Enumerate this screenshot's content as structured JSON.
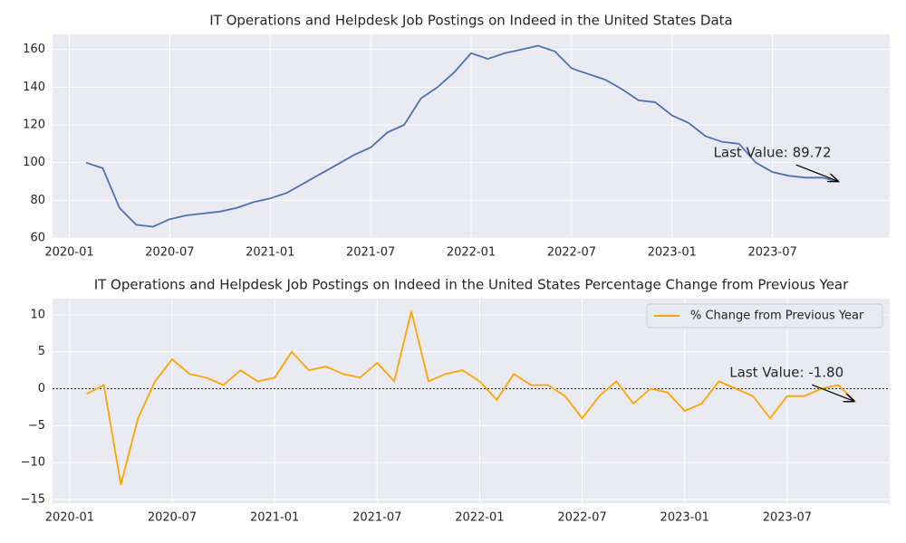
{
  "chart_data": [
    {
      "type": "line",
      "title": "IT Operations and Helpdesk Job Postings on Indeed in the United States Data",
      "x": [
        "2020-02",
        "2020-03",
        "2020-04",
        "2020-05",
        "2020-06",
        "2020-07",
        "2020-08",
        "2020-09",
        "2020-10",
        "2020-11",
        "2020-12",
        "2021-01",
        "2021-02",
        "2021-03",
        "2021-04",
        "2021-05",
        "2021-06",
        "2021-07",
        "2021-08",
        "2021-09",
        "2021-10",
        "2021-11",
        "2021-12",
        "2022-01",
        "2022-02",
        "2022-03",
        "2022-04",
        "2022-05",
        "2022-06",
        "2022-07",
        "2022-08",
        "2022-09",
        "2022-10",
        "2022-11",
        "2022-12",
        "2023-01",
        "2023-02",
        "2023-03",
        "2023-04",
        "2023-05",
        "2023-06",
        "2023-07",
        "2023-08",
        "2023-09",
        "2023-10",
        "2023-11"
      ],
      "values": [
        100,
        97,
        76,
        67,
        66,
        70,
        72,
        73,
        74,
        76,
        79,
        81,
        84,
        89,
        94,
        99,
        104,
        108,
        116,
        120,
        134,
        140,
        148,
        158,
        155,
        158,
        160,
        162,
        159,
        150,
        147,
        144,
        139,
        133,
        132,
        125,
        121,
        114,
        111,
        110,
        100,
        95,
        93,
        92,
        92,
        89.72
      ],
      "color": "#4c72b0",
      "xlim": [
        "2019-12",
        "2024-02"
      ],
      "xticks": [
        "2020-01",
        "2020-07",
        "2021-01",
        "2021-07",
        "2022-01",
        "2022-07",
        "2023-01",
        "2023-07"
      ],
      "ylim": [
        60,
        168
      ],
      "yticks": [
        60,
        80,
        100,
        120,
        140,
        160
      ],
      "grid": true,
      "annotation": "Last Value: 89.72"
    },
    {
      "type": "line",
      "title": "IT Operations and Helpdesk Job Postings on Indeed in the United States Percentage Change from Previous Year",
      "x": [
        "2020-02",
        "2020-03",
        "2020-04",
        "2020-05",
        "2020-06",
        "2020-07",
        "2020-08",
        "2020-09",
        "2020-10",
        "2020-11",
        "2020-12",
        "2021-01",
        "2021-02",
        "2021-03",
        "2021-04",
        "2021-05",
        "2021-06",
        "2021-07",
        "2021-08",
        "2021-09",
        "2021-10",
        "2021-11",
        "2021-12",
        "2022-01",
        "2022-02",
        "2022-03",
        "2022-04",
        "2022-05",
        "2022-06",
        "2022-07",
        "2022-08",
        "2022-09",
        "2022-10",
        "2022-11",
        "2022-12",
        "2023-01",
        "2023-02",
        "2023-03",
        "2023-04",
        "2023-05",
        "2023-06",
        "2023-07",
        "2023-08",
        "2023-09",
        "2023-10",
        "2023-11"
      ],
      "series": [
        {
          "name": "% Change from Previous Year",
          "color": "#ffa500",
          "values": [
            -0.7,
            0.5,
            -13,
            -4,
            1,
            4,
            2,
            1.5,
            0.5,
            2.5,
            1,
            1.5,
            5,
            2.5,
            3,
            2,
            1.5,
            3.5,
            1,
            10.5,
            1,
            2,
            2.5,
            1,
            -1.5,
            2,
            0.5,
            0.5,
            -1,
            -4,
            -1,
            1,
            -2,
            0,
            -0.5,
            -3,
            -2,
            1,
            0,
            -1,
            -4,
            -1,
            -1,
            0,
            0.5,
            -1.8
          ]
        }
      ],
      "xlim": [
        "2019-12",
        "2024-01"
      ],
      "xticks": [
        "2020-01",
        "2020-07",
        "2021-01",
        "2021-07",
        "2022-01",
        "2022-07",
        "2023-01",
        "2023-07"
      ],
      "ylim": [
        -15.5,
        12.2
      ],
      "yticks": [
        {
          "value": -15,
          "label": "−15"
        },
        {
          "value": -10,
          "label": "−10"
        },
        {
          "value": -5,
          "label": "−5"
        },
        0,
        5,
        10
      ],
      "grid": true,
      "hline": 0,
      "legend": "upper right",
      "annotation": "Last Value: -1.80"
    }
  ]
}
